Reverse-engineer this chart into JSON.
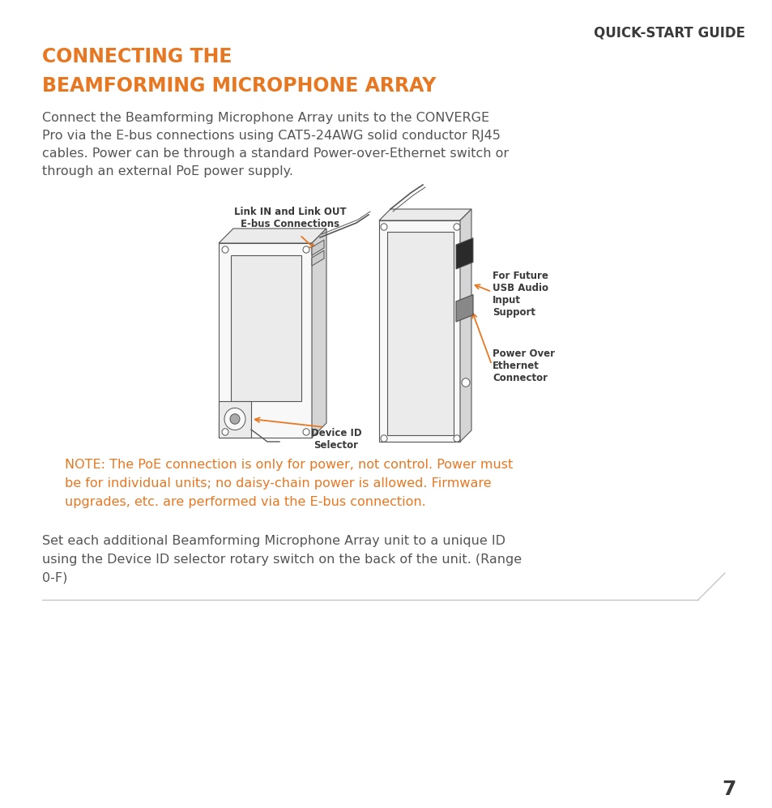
{
  "background_color": "#ffffff",
  "header_text": "QUICK-START GUIDE",
  "header_color": "#3a3a3a",
  "header_fontsize": 12,
  "title_line1": "CONNECTING THE",
  "title_line2": "BEAMFORMING MICROPHONE ARRAY",
  "title_color": "#e87722",
  "title_fontsize": 17,
  "body_text": "Connect the Beamforming Microphone Array units to the CONVERGE\nPro via the E-bus connections using CAT5-24AWG solid conductor RJ45\ncables. Power can be through a standard Power-over-Ethernet switch or\nthrough an external PoE power supply.",
  "body_color": "#555555",
  "body_fontsize": 11.5,
  "note_text": "NOTE: The PoE connection is only for power, not control. Power must\nbe for individual units; no daisy-chain power is allowed. Firmware\nupgrades, etc. are performed via the E-bus connection.",
  "note_color": "#e87722",
  "note_fontsize": 11.5,
  "footer_text": "Set each additional Beamforming Microphone Array unit to a unique ID\nusing the Device ID selector rotary switch on the back of the unit. (Range\n0-F)",
  "footer_color": "#555555",
  "footer_fontsize": 11.5,
  "page_number": "7",
  "page_number_color": "#3a3a3a",
  "page_number_fontsize": 18,
  "arrow_color": "#e87722",
  "label_color": "#3a3a3a",
  "label_fontsize": 8.5,
  "diagram_line_color": "#555555",
  "diagram_face_light": "#f8f8f8",
  "diagram_face_mid": "#ebebeb",
  "diagram_face_dark": "#d5d5d5"
}
